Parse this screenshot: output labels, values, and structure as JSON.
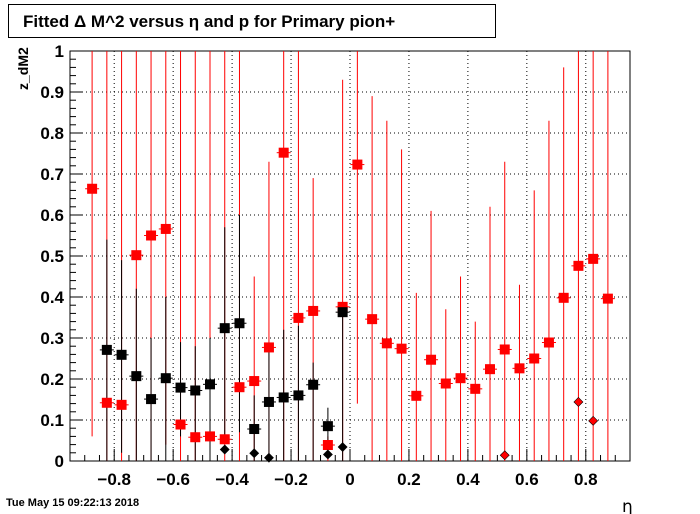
{
  "header": {
    "title": "Fitted Δ M^2 versus η and p for Primary pion+"
  },
  "footer": {
    "timestamp": "Tue May 15 09:22:13 2018"
  },
  "chart_data": {
    "type": "scatter",
    "title": "Fitted Δ M^2 versus η and p for Primary pion+",
    "xlabel": "η",
    "ylabel": "z_dM2",
    "xlim": [
      -0.95,
      0.95
    ],
    "ylim": [
      0,
      1
    ],
    "grid": true,
    "x_ticks": [
      "−0.8",
      "−0.6",
      "−0.4",
      "−0.2",
      "0",
      "0.2",
      "0.4",
      "0.6",
      "0.8"
    ],
    "x_tick_values": [
      -0.8,
      -0.6,
      -0.4,
      -0.2,
      0,
      0.2,
      0.4,
      0.6,
      0.8
    ],
    "y_ticks": [
      "0",
      "0.1",
      "0.2",
      "0.3",
      "0.4",
      "0.5",
      "0.6",
      "0.7",
      "0.8",
      "0.9",
      "1"
    ],
    "y_tick_values": [
      0,
      0.1,
      0.2,
      0.3,
      0.4,
      0.5,
      0.6,
      0.7,
      0.8,
      0.9,
      1
    ],
    "series": [
      {
        "color": "#ff0000",
        "marker": "square",
        "points": [
          {
            "x": -0.875,
            "y": 0.664,
            "lo": 0.06,
            "hi": 1.0
          },
          {
            "x": -0.825,
            "y": 0.142,
            "lo": 0.0,
            "hi": 1.0
          },
          {
            "x": -0.775,
            "y": 0.137,
            "lo": 0.0,
            "hi": 1.0
          },
          {
            "x": -0.725,
            "y": 0.502,
            "lo": 0.0,
            "hi": 1.0
          },
          {
            "x": -0.675,
            "y": 0.55,
            "lo": 0.0,
            "hi": 1.0
          },
          {
            "x": -0.625,
            "y": 0.566,
            "lo": 0.04,
            "hi": 1.0
          },
          {
            "x": -0.575,
            "y": 0.089,
            "lo": 0.0,
            "hi": 1.0
          },
          {
            "x": -0.525,
            "y": 0.058,
            "lo": 0.0,
            "hi": 1.0
          },
          {
            "x": -0.475,
            "y": 0.06,
            "lo": 0.0,
            "hi": 1.0
          },
          {
            "x": -0.425,
            "y": 0.053,
            "lo": 0.0,
            "hi": 1.0
          },
          {
            "x": -0.375,
            "y": 0.18,
            "lo": 0.0,
            "hi": 1.0
          },
          {
            "x": -0.325,
            "y": 0.195,
            "lo": 0.0,
            "hi": 0.45
          },
          {
            "x": -0.275,
            "y": 0.277,
            "lo": 0.0,
            "hi": 0.73
          },
          {
            "x": -0.225,
            "y": 0.752,
            "lo": 0.0,
            "hi": 1.0
          },
          {
            "x": -0.175,
            "y": 0.349,
            "lo": 0.0,
            "hi": 1.0
          },
          {
            "x": -0.125,
            "y": 0.366,
            "lo": 0.0,
            "hi": 0.69
          },
          {
            "x": -0.075,
            "y": 0.039,
            "lo": 0.0,
            "hi": 0.06
          },
          {
            "x": -0.025,
            "y": 0.376,
            "lo": 0.0,
            "hi": 0.93
          },
          {
            "x": 0.025,
            "y": 0.723,
            "lo": 0.14,
            "hi": 1.0
          },
          {
            "x": 0.075,
            "y": 0.346,
            "lo": 0.0,
            "hi": 0.89
          },
          {
            "x": 0.125,
            "y": 0.287,
            "lo": 0.0,
            "hi": 0.83
          },
          {
            "x": 0.175,
            "y": 0.274,
            "lo": 0.0,
            "hi": 0.76
          },
          {
            "x": 0.225,
            "y": 0.159,
            "lo": 0.0,
            "hi": 0.41
          },
          {
            "x": 0.275,
            "y": 0.247,
            "lo": 0.0,
            "hi": 0.61
          },
          {
            "x": 0.325,
            "y": 0.189,
            "lo": 0.0,
            "hi": 0.37
          },
          {
            "x": 0.375,
            "y": 0.202,
            "lo": 0.0,
            "hi": 0.45
          },
          {
            "x": 0.425,
            "y": 0.176,
            "lo": 0.0,
            "hi": 0.34
          },
          {
            "x": 0.475,
            "y": 0.224,
            "lo": 0.0,
            "hi": 0.62
          },
          {
            "x": 0.525,
            "y": 0.272,
            "lo": 0.0,
            "hi": 0.73
          },
          {
            "x": 0.575,
            "y": 0.226,
            "lo": 0.0,
            "hi": 0.43
          },
          {
            "x": 0.625,
            "y": 0.25,
            "lo": 0.0,
            "hi": 0.66
          },
          {
            "x": 0.675,
            "y": 0.289,
            "lo": 0.0,
            "hi": 0.83
          },
          {
            "x": 0.725,
            "y": 0.398,
            "lo": 0.0,
            "hi": 0.96
          },
          {
            "x": 0.775,
            "y": 0.476,
            "lo": 0.0,
            "hi": 1.0
          },
          {
            "x": 0.825,
            "y": 0.493,
            "lo": 0.0,
            "hi": 1.0
          },
          {
            "x": 0.875,
            "y": 0.396,
            "lo": 0.0,
            "hi": 1.0
          }
        ]
      },
      {
        "color": "#000000",
        "marker": "square",
        "points": [
          {
            "x": -0.825,
            "y": 0.271,
            "lo": 0.0,
            "hi": 0.54
          },
          {
            "x": -0.775,
            "y": 0.259,
            "lo": 0.02,
            "hi": 0.49
          },
          {
            "x": -0.725,
            "y": 0.207,
            "lo": 0.0,
            "hi": 0.42
          },
          {
            "x": -0.675,
            "y": 0.151,
            "lo": 0.0,
            "hi": 0.3
          },
          {
            "x": -0.625,
            "y": 0.202,
            "lo": 0.0,
            "hi": 0.4
          },
          {
            "x": -0.575,
            "y": 0.179,
            "lo": 0.06,
            "hi": 0.29
          },
          {
            "x": -0.525,
            "y": 0.172,
            "lo": 0.0,
            "hi": 0.28
          },
          {
            "x": -0.475,
            "y": 0.187,
            "lo": 0.0,
            "hi": 0.3
          },
          {
            "x": -0.425,
            "y": 0.324,
            "lo": 0.06,
            "hi": 0.57
          },
          {
            "x": -0.375,
            "y": 0.336,
            "lo": 0.07,
            "hi": 0.6
          },
          {
            "x": -0.325,
            "y": 0.078,
            "lo": 0.0,
            "hi": 0.16
          },
          {
            "x": -0.275,
            "y": 0.144,
            "lo": 0.0,
            "hi": 0.28
          },
          {
            "x": -0.225,
            "y": 0.155,
            "lo": 0.0,
            "hi": 0.32
          },
          {
            "x": -0.175,
            "y": 0.16,
            "lo": 0.0,
            "hi": 0.33
          },
          {
            "x": -0.125,
            "y": 0.186,
            "lo": 0.0,
            "hi": 0.24
          },
          {
            "x": -0.075,
            "y": 0.085,
            "lo": 0.04,
            "hi": 0.13
          },
          {
            "x": -0.025,
            "y": 0.363,
            "lo": 0.0,
            "hi": 0.37
          }
        ]
      },
      {
        "color": "#000000",
        "marker": "diamond",
        "points": [
          {
            "x": -0.425,
            "y": 0.028
          },
          {
            "x": -0.325,
            "y": 0.019
          },
          {
            "x": -0.275,
            "y": 0.008
          },
          {
            "x": -0.075,
            "y": 0.016
          },
          {
            "x": -0.025,
            "y": 0.034
          }
        ]
      },
      {
        "color": "#ff0000",
        "marker": "diamond",
        "points": [
          {
            "x": 0.525,
            "y": 0.014
          },
          {
            "x": 0.775,
            "y": 0.144
          },
          {
            "x": 0.825,
            "y": 0.098
          }
        ]
      }
    ]
  }
}
